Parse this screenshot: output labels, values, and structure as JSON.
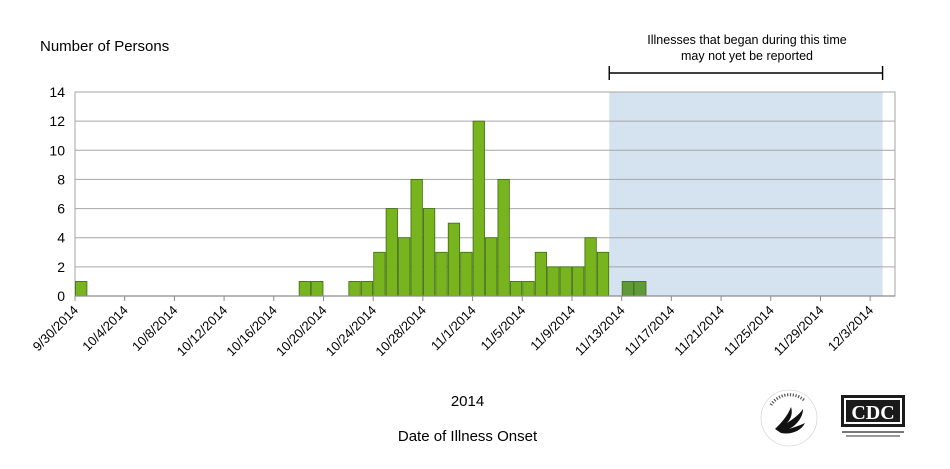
{
  "chart_data": {
    "type": "bar",
    "ylabel": "Number of Persons",
    "xlabel_year": "2014",
    "xlabel": "Date of Illness Onset",
    "ylim": [
      0,
      14
    ],
    "yticks": [
      0,
      2,
      4,
      6,
      8,
      10,
      12,
      14
    ],
    "grid": true,
    "xticks": [
      "9/30/2014",
      "10/4/2014",
      "10/8/2014",
      "10/12/2014",
      "10/16/2014",
      "10/20/2014",
      "10/24/2014",
      "10/28/2014",
      "11/1/2014",
      "11/5/2014",
      "11/9/2014",
      "11/13/2014",
      "11/17/2014",
      "11/21/2014",
      "11/25/2014",
      "11/29/2014",
      "12/3/2014"
    ],
    "series": [
      {
        "name": "",
        "color": "#78B41E",
        "points": [
          {
            "date": "9/30/2014",
            "value": 1
          },
          {
            "date": "10/18/2014",
            "value": 1
          },
          {
            "date": "10/19/2014",
            "value": 1
          },
          {
            "date": "10/22/2014",
            "value": 1
          },
          {
            "date": "10/23/2014",
            "value": 1
          },
          {
            "date": "10/24/2014",
            "value": 3
          },
          {
            "date": "10/25/2014",
            "value": 6
          },
          {
            "date": "10/26/2014",
            "value": 4
          },
          {
            "date": "10/27/2014",
            "value": 8
          },
          {
            "date": "10/28/2014",
            "value": 6
          },
          {
            "date": "10/29/2014",
            "value": 3
          },
          {
            "date": "10/30/2014",
            "value": 5
          },
          {
            "date": "10/31/2014",
            "value": 3
          },
          {
            "date": "11/1/2014",
            "value": 12
          },
          {
            "date": "11/2/2014",
            "value": 4
          },
          {
            "date": "11/3/2014",
            "value": 8
          },
          {
            "date": "11/4/2014",
            "value": 1
          },
          {
            "date": "11/5/2014",
            "value": 1
          },
          {
            "date": "11/6/2014",
            "value": 3
          },
          {
            "date": "11/7/2014",
            "value": 2
          },
          {
            "date": "11/8/2014",
            "value": 2
          },
          {
            "date": "11/9/2014",
            "value": 2
          },
          {
            "date": "11/10/2014",
            "value": 4
          },
          {
            "date": "11/11/2014",
            "value": 3
          }
        ]
      },
      {
        "name": "",
        "color": "#5E9A3A",
        "points": [
          {
            "date": "11/13/2014",
            "value": 1
          },
          {
            "date": "11/14/2014",
            "value": 1
          }
        ]
      }
    ],
    "shaded_region": {
      "start": "11/12/2014",
      "end": "12/4/2014",
      "color": "#D5E2F0",
      "label": "Illnesses that began during this time may not yet be reported"
    }
  },
  "logos": {
    "hhs": "DEPARTMENT OF HEALTH & HUMAN SERVICES USA",
    "cdc": "CDC",
    "cdc_sub": "CENTERS FOR DISEASE CONTROL AND PREVENTION"
  }
}
